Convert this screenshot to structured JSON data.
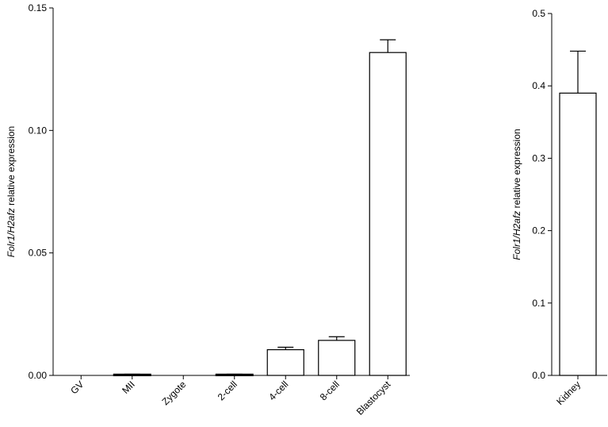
{
  "chart_data": [
    {
      "type": "bar",
      "ylabel_gene": "Folr1/H2afz",
      "ylabel_rest": " relative expression",
      "ylim": [
        0,
        0.15
      ],
      "yticks": [
        "0.00",
        "0.05",
        "0.10",
        "0.15"
      ],
      "categories": [
        "GV",
        "MII",
        "Zygote",
        "2-cell",
        "4-cell",
        "8-cell",
        "Blastocyst"
      ],
      "values": [
        0,
        0.0003,
        0,
        0.0003,
        0.0105,
        0.0143,
        0.1318
      ],
      "errors": [
        0,
        0.0002,
        0,
        0.0002,
        0.001,
        0.0015,
        0.0052
      ],
      "grid": false,
      "bar_color": "#ffffff",
      "edge_color": "#000000"
    },
    {
      "type": "bar",
      "ylabel_gene": "Folr1/H2afz",
      "ylabel_rest": " relative expression",
      "ylim": [
        0,
        0.5
      ],
      "yticks": [
        "0.0",
        "0.1",
        "0.2",
        "0.3",
        "0.4",
        "0.5"
      ],
      "categories": [
        "Kidney"
      ],
      "values": [
        0.39
      ],
      "errors": [
        0.058
      ],
      "grid": false,
      "bar_color": "#ffffff",
      "edge_color": "#000000"
    }
  ]
}
